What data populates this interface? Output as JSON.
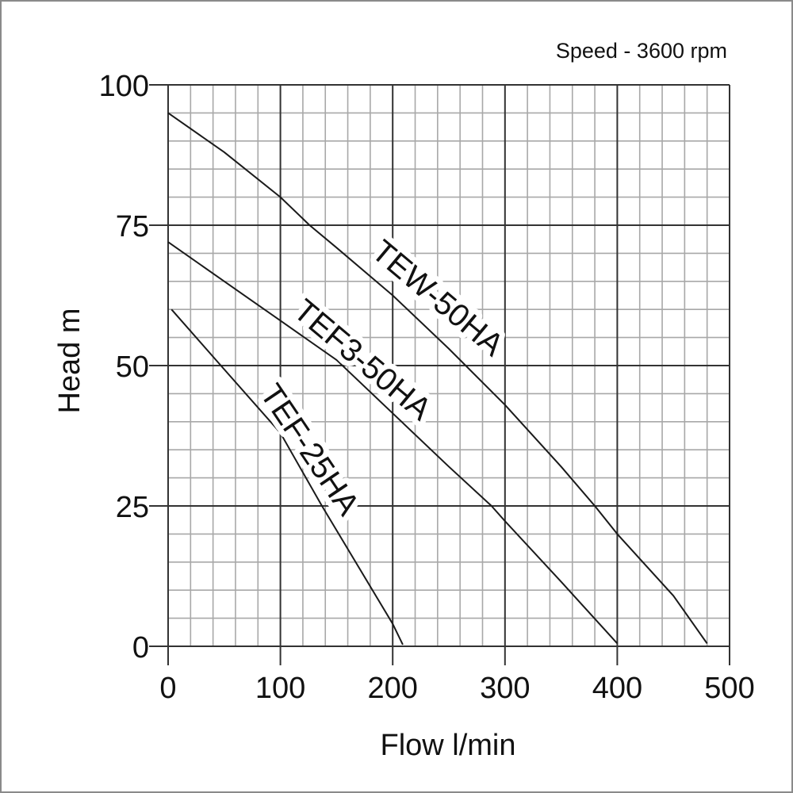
{
  "chart_data": {
    "type": "line",
    "title": "",
    "annotation": "Speed - 3600 rpm",
    "xlabel": "Flow l/min",
    "ylabel": "Head m",
    "xlim": [
      0,
      500
    ],
    "ylim": [
      0,
      100
    ],
    "x_ticks": [
      0,
      100,
      200,
      300,
      400,
      500
    ],
    "y_ticks": [
      0,
      25,
      50,
      75,
      100
    ],
    "x_tick_labels": [
      "0",
      "100",
      "200",
      "300",
      "400",
      "500"
    ],
    "y_tick_labels": [
      "0",
      "25",
      "50",
      "75",
      "100"
    ],
    "grid": {
      "on": true,
      "x_minor_step": 20,
      "y_minor_step": 5
    },
    "legend": "inline labels along curves",
    "series": [
      {
        "name": "TEW-50HA",
        "x": [
          0,
          50,
          100,
          126,
          150,
          200,
          250,
          300,
          350,
          380,
          400,
          450,
          480
        ],
        "y": [
          95,
          88,
          80,
          75,
          71,
          62.5,
          53,
          43,
          32,
          25,
          20,
          9,
          0.5
        ],
        "label_pos": {
          "x": 240,
          "y": 62,
          "angle": 40
        }
      },
      {
        "name": "TEF3-50HA",
        "x": [
          0,
          50,
          100,
          150,
          200,
          250,
          288,
          300,
          350,
          400
        ],
        "y": [
          72,
          65,
          58,
          51,
          41.5,
          32,
          25,
          22.3,
          11.5,
          0.5
        ],
        "label_pos": {
          "x": 173,
          "y": 51,
          "angle": 40
        }
      },
      {
        "name": "TEF-25HA",
        "x": [
          3,
          47,
          100,
          137,
          170,
          200,
          209
        ],
        "y": [
          60,
          50,
          38,
          25,
          14,
          4,
          0.3
        ],
        "label_pos": {
          "x": 126,
          "y": 35,
          "angle": 56
        }
      }
    ]
  },
  "colors": {
    "curve": "#1a1a1a",
    "major_grid": "#333333",
    "minor_grid": "#a8a8a8",
    "frame": "#8a8a8a"
  }
}
